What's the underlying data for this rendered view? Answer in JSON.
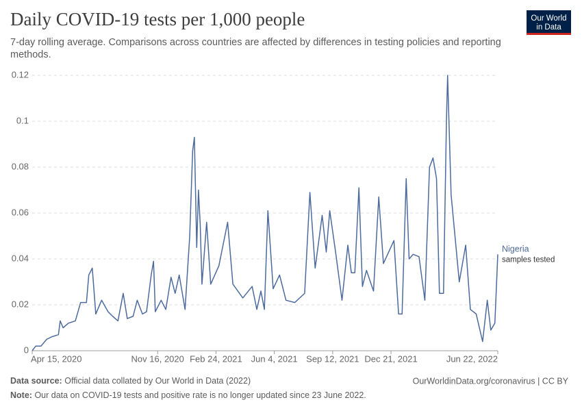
{
  "header": {
    "title": "Daily COVID-19 tests per 1,000 people",
    "subtitle_lines": [
      "7-day rolling average. Comparisons across countries are affected by differences in testing policies and reporting",
      "methods."
    ],
    "logo_lines": [
      "Our World",
      "in Data"
    ]
  },
  "chart_data": {
    "type": "line",
    "x": [
      "2020-04-15",
      "2020-04-21",
      "2020-04-30",
      "2020-05-10",
      "2020-05-18",
      "2020-05-30",
      "2020-06-02",
      "2020-06-07",
      "2020-06-16",
      "2020-06-28",
      "2020-07-07",
      "2020-07-17",
      "2020-07-21",
      "2020-07-27",
      "2020-08-02",
      "2020-08-12",
      "2020-08-23",
      "2020-08-31",
      "2020-09-09",
      "2020-09-18",
      "2020-09-25",
      "2020-10-05",
      "2020-10-12",
      "2020-10-21",
      "2020-10-28",
      "2020-11-05",
      "2020-11-09",
      "2020-11-12",
      "2020-11-22",
      "2020-11-30",
      "2020-12-09",
      "2020-12-16",
      "2020-12-23",
      "2021-01-02",
      "2021-01-10",
      "2021-01-15",
      "2021-01-18",
      "2021-01-22",
      "2021-01-25",
      "2021-01-28",
      "2021-01-31",
      "2021-02-08",
      "2021-02-15",
      "2021-03-01",
      "2021-03-16",
      "2021-03-25",
      "2021-04-11",
      "2021-04-27",
      "2021-05-05",
      "2021-05-12",
      "2021-05-18",
      "2021-05-24",
      "2021-06-02",
      "2021-06-13",
      "2021-06-24",
      "2021-07-09",
      "2021-07-26",
      "2021-08-04",
      "2021-08-13",
      "2021-08-25",
      "2021-09-01",
      "2021-09-07",
      "2021-09-17",
      "2021-09-28",
      "2021-10-08",
      "2021-10-14",
      "2021-10-20",
      "2021-10-27",
      "2021-11-02",
      "2021-11-09",
      "2021-11-21",
      "2021-11-30",
      "2021-12-08",
      "2021-12-26",
      "2022-01-03",
      "2022-01-09",
      "2022-01-16",
      "2022-01-21",
      "2022-01-28",
      "2022-02-07",
      "2022-02-17",
      "2022-02-25",
      "2022-03-03",
      "2022-03-09",
      "2022-03-14",
      "2022-03-21",
      "2022-03-26",
      "2022-03-28",
      "2022-04-03",
      "2022-04-17",
      "2022-04-28",
      "2022-05-06",
      "2022-05-16",
      "2022-05-27",
      "2022-06-04",
      "2022-06-10",
      "2022-06-17",
      "2022-06-22"
    ],
    "series": [
      {
        "name": "Nigeria",
        "color": "#4c6a9c",
        "values": [
          0,
          0.002,
          0.002,
          0.005,
          0.006,
          0.007,
          0.013,
          0.01,
          0.012,
          0.013,
          0.021,
          0.021,
          0.033,
          0.036,
          0.016,
          0.022,
          0.017,
          0.015,
          0.013,
          0.025,
          0.014,
          0.015,
          0.022,
          0.016,
          0.017,
          0.033,
          0.039,
          0.017,
          0.022,
          0.018,
          0.032,
          0.025,
          0.033,
          0.018,
          0.05,
          0.087,
          0.093,
          0.045,
          0.07,
          0.055,
          0.029,
          0.056,
          0.029,
          0.037,
          0.056,
          0.029,
          0.023,
          0.028,
          0.018,
          0.026,
          0.018,
          0.061,
          0.027,
          0.033,
          0.022,
          0.021,
          0.025,
          0.069,
          0.036,
          0.059,
          0.043,
          0.061,
          0.043,
          0.022,
          0.046,
          0.034,
          0.034,
          0.071,
          0.028,
          0.035,
          0.026,
          0.067,
          0.038,
          0.048,
          0.016,
          0.016,
          0.075,
          0.04,
          0.042,
          0.041,
          0.022,
          0.08,
          0.084,
          0.075,
          0.025,
          0.025,
          0.1,
          0.12,
          0.068,
          0.03,
          0.046,
          0.018,
          0.016,
          0.004,
          0.022,
          0.009,
          0.012,
          0.042
        ]
      }
    ],
    "annotation": "samples tested",
    "xlim": [
      "2020-04-15",
      "2022-06-22"
    ],
    "xticks": [
      {
        "value": "2020-04-15",
        "label": "Apr 15, 2020"
      },
      {
        "value": "2020-11-16",
        "label": "Nov 16, 2020"
      },
      {
        "value": "2021-02-24",
        "label": "Feb 24, 2021"
      },
      {
        "value": "2021-06-04",
        "label": "Jun 4, 2021"
      },
      {
        "value": "2021-09-12",
        "label": "Sep 12, 2021"
      },
      {
        "value": "2021-12-21",
        "label": "Dec 21, 2021"
      },
      {
        "value": "2022-06-22",
        "label": "Jun 22, 2022"
      }
    ],
    "ylim": [
      0,
      0.12
    ],
    "yticks": [
      0,
      0.02,
      0.04,
      0.06,
      0.08,
      0.1,
      0.12
    ],
    "grid": true
  },
  "footer": {
    "source_label": "Data source:",
    "source": "Official data collated by Our World in Data (2022)",
    "link": "OurWorldinData.org/coronavirus | CC BY",
    "note_label": "Note:",
    "note": "Our data on COVID-19 tests and positive rate is no longer updated since 23 June 2022."
  }
}
